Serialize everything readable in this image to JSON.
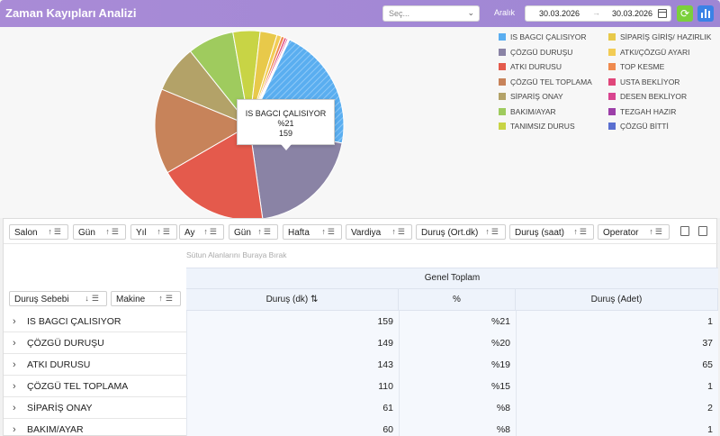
{
  "header": {
    "title": "Zaman Kayıpları Analizi",
    "select_placeholder": "Seç...",
    "range_label": "Aralık",
    "date_start": "30.03.2026",
    "date_end": "30.03.2026",
    "date_arrow": "→"
  },
  "chart_data": {
    "type": "pie",
    "categories": [
      "IS BAGCI ÇALISIYOR",
      "ÇÖZGÜ DURUŞU",
      "ATKI DURUSU",
      "ÇÖZGÜ TEL TOPLAMA",
      "SİPARİŞ ONAY",
      "BAKIM/AYAR",
      "TANIMSIZ DURUS",
      "SİPARİŞ GİRİŞ/ HAZIRLIK",
      "ATKI/ÇÖZGÜ AYARI",
      "TOP KESME",
      "USTA BEKLİYOR",
      "DESEN BEKLİYOR",
      "TEZGAH HAZIR",
      "ÇÖZGÜ BİTTİ"
    ],
    "values": [
      159,
      149,
      143,
      110,
      61,
      60,
      35,
      22,
      6,
      4,
      3,
      2,
      1,
      1
    ],
    "colors": [
      "#5aaef0",
      "#8a83a5",
      "#e45a4c",
      "#c7835a",
      "#b3a268",
      "#9fcb5e",
      "#c8d445",
      "#e8c94a",
      "#f2cc55",
      "#ef8a4e",
      "#e0467a",
      "#d9448f",
      "#9c3fa8",
      "#5a6fd0"
    ]
  },
  "legend_left": [
    "IS BAGCI ÇALISIYOR",
    "ÇÖZGÜ DURUŞU",
    "ATKI DURUSU",
    "ÇÖZGÜ TEL TOPLAMA",
    "SİPARİŞ ONAY",
    "BAKIM/AYAR",
    "TANIMSIZ DURUS"
  ],
  "legend_right": [
    "SİPARİŞ GİRİŞ/ HAZIRLIK",
    "ATKI/ÇÖZGÜ AYARI",
    "TOP KESME",
    "USTA BEKLİYOR",
    "DESEN BEKLİYOR",
    "TEZGAH HAZIR",
    "ÇÖZGÜ BİTTİ"
  ],
  "tooltip": {
    "name": "IS BAGCI ÇALISIYOR",
    "percent": "%21",
    "count": "159"
  },
  "filters": [
    "Salon",
    "Gün",
    "Yıl",
    "Ay",
    "Gün",
    "Hafta",
    "Vardiya",
    "Duruş (Ort.dk)",
    "Duruş (saat)",
    "Operator"
  ],
  "pivot": {
    "drop_text": "Sütun Alanlarını Buraya Bırak",
    "grand_total": "Genel Toplam",
    "row_fields": [
      "Duruş Sebebi",
      "Makine"
    ],
    "columns": [
      "Duruş (dk)",
      "%",
      "Duruş (Adet)"
    ],
    "rows": [
      {
        "name": "IS BAGCI ÇALISIYOR",
        "dk": "159",
        "pct": "%21",
        "adet": "1"
      },
      {
        "name": "ÇÖZGÜ DURUŞU",
        "dk": "149",
        "pct": "%20",
        "adet": "37"
      },
      {
        "name": "ATKI DURUSU",
        "dk": "143",
        "pct": "%19",
        "adet": "65"
      },
      {
        "name": "ÇÖZGÜ TEL TOPLAMA",
        "dk": "110",
        "pct": "%15",
        "adet": "1"
      },
      {
        "name": "SİPARİŞ ONAY",
        "dk": "61",
        "pct": "%8",
        "adet": "2"
      },
      {
        "name": "BAKIM/AYAR",
        "dk": "60",
        "pct": "%8",
        "adet": "1"
      }
    ]
  }
}
